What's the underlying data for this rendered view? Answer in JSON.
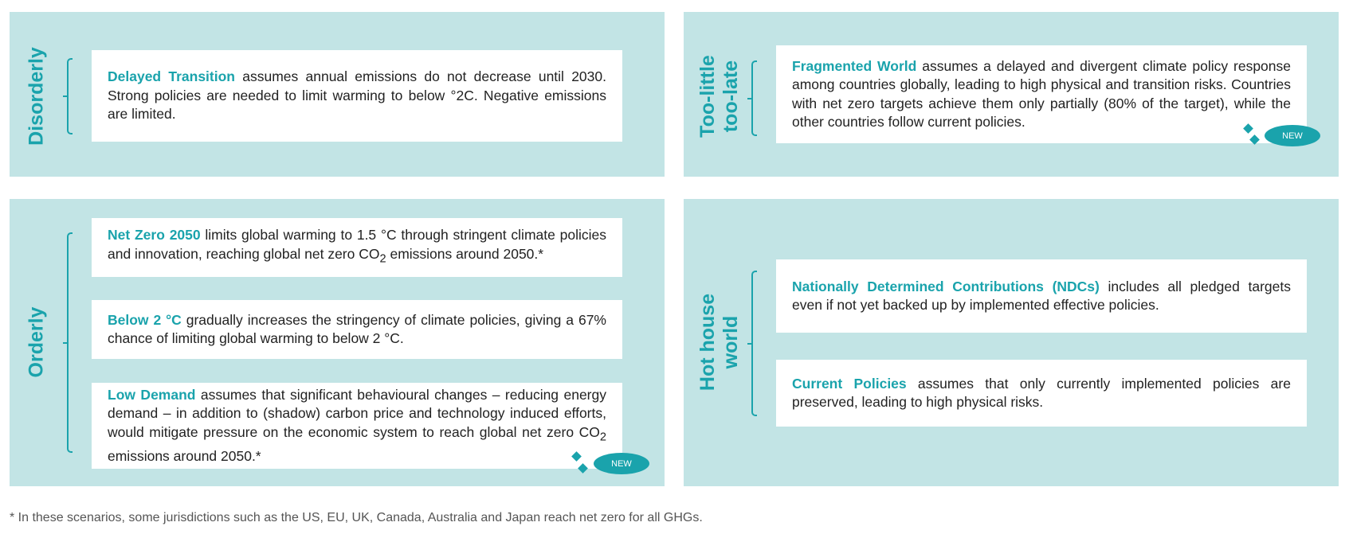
{
  "quadrants": {
    "disorderly": {
      "label": "Disorderly",
      "scenarios": [
        {
          "term": "Delayed Transition",
          "text": " assumes annual emissions do not decrease until 2030. Strong policies are needed to limit warming to below °2C. Negative emissions are limited."
        }
      ]
    },
    "too_little_too_late": {
      "label_line1": "Too-little",
      "label_line2": "too-late",
      "scenarios": [
        {
          "term": "Fragmented World",
          "text": " assumes a delayed and divergent climate policy response among countries globally, leading to high physical and transition risks. Countries with net zero targets achieve them only partially (80% of the target), while the other countries follow current policies.",
          "badge": "NEW"
        }
      ]
    },
    "orderly": {
      "label": "Orderly",
      "scenarios": [
        {
          "term": "Net Zero 2050",
          "text_a": " limits global warming to 1.5 °C through stringent climate policies and innovation, reaching global net zero CO",
          "sub": "2",
          "text_b": " emissions around 2050.*"
        },
        {
          "term": "Below 2 °C",
          "text": " gradually increases the stringency of climate policies, giving a 67% chance of limiting global warming to below 2 °C."
        },
        {
          "term": "Low Demand",
          "text_a": " assumes that significant behavioural changes – reducing energy demand – in addition to (shadow) carbon price and technology induced efforts, would mitigate pressure on the economic system to reach global net zero CO",
          "sub": "2",
          "text_b": " emissions around 2050.*",
          "badge": "NEW"
        }
      ]
    },
    "hot_house_world": {
      "label_line1": "Hot house",
      "label_line2": "world",
      "scenarios": [
        {
          "term": "Nationally Determined Contributions (NDCs)",
          "text": " includes all pledged targets even if not yet backed up by implemented effective policies."
        },
        {
          "term": "Current Policies",
          "text": " assumes that only currently implemented policies are preserved, leading to high physical risks."
        }
      ]
    }
  },
  "footnote": "* In these scenarios, some jurisdictions such as the US, EU, UK, Canada, Australia and Japan reach net zero for all GHGs.",
  "colors": {
    "accent": "#1aa3ac",
    "panel": "#c2e4e5",
    "box": "#ffffff",
    "text": "#222222",
    "footnote": "#555555"
  }
}
